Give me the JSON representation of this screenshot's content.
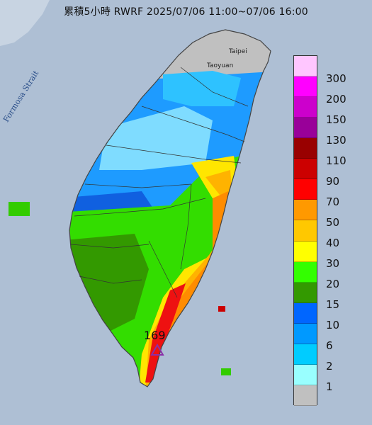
{
  "title": "累積5小時 RWRF 2025/07/06 11:00~07/06 16:00",
  "map_labels": {
    "taipei": "Taipei",
    "taoyuan": "Taoyuan",
    "strait": "Formosa Strait"
  },
  "max_marker": {
    "value": "169",
    "icon": "triangle-icon",
    "color": "#8b2fa8"
  },
  "legend": {
    "items": [
      {
        "label": "300",
        "color": "#ffc6ff"
      },
      {
        "label": "200",
        "color": "#ff00ff"
      },
      {
        "label": "150",
        "color": "#cc00cc"
      },
      {
        "label": "130",
        "color": "#990099"
      },
      {
        "label": "110",
        "color": "#990000"
      },
      {
        "label": "90",
        "color": "#cc0000"
      },
      {
        "label": "70",
        "color": "#ff0000"
      },
      {
        "label": "50",
        "color": "#ff9900"
      },
      {
        "label": "40",
        "color": "#ffc800"
      },
      {
        "label": "30",
        "color": "#ffff00"
      },
      {
        "label": "20",
        "color": "#33ff00"
      },
      {
        "label": "15",
        "color": "#339900"
      },
      {
        "label": "10",
        "color": "#0066ff"
      },
      {
        "label": "6",
        "color": "#0099ff"
      },
      {
        "label": "2",
        "color": "#00ccff"
      },
      {
        "label": "1",
        "color": "#99ffff"
      },
      {
        "label": "",
        "color": "#c0c0c0"
      }
    ]
  },
  "colors": {
    "sea": "#aebfd4",
    "land_border": "#444444"
  }
}
